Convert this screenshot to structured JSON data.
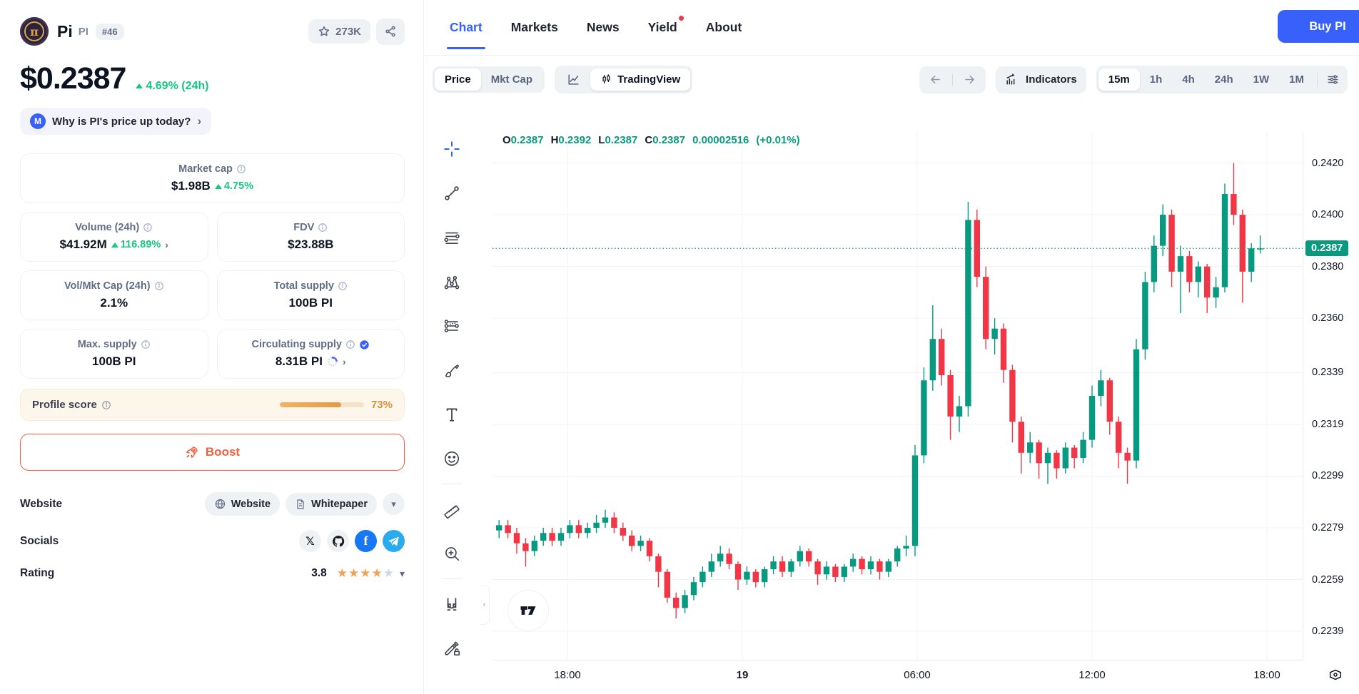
{
  "sidebar": {
    "coin": {
      "name": "Pi",
      "symbol": "PI",
      "rank": "#46",
      "watchers": "273K"
    },
    "price": {
      "value": "$0.2387",
      "change": "4.69% (24h)"
    },
    "why_banner": {
      "text": "Why is PI's price up today?",
      "cmc_initial": "M"
    },
    "stats": {
      "market_cap": {
        "label": "Market cap",
        "value": "$1.98B",
        "change": "4.75%"
      },
      "volume": {
        "label": "Volume (24h)",
        "value": "$41.92M",
        "change": "116.89%"
      },
      "fdv": {
        "label": "FDV",
        "value": "$23.88B"
      },
      "vol_mkt_cap": {
        "label": "Vol/Mkt Cap (24h)",
        "value": "2.1%"
      },
      "total_supply": {
        "label": "Total supply",
        "value": "100B PI"
      },
      "max_supply": {
        "label": "Max. supply",
        "value": "100B PI"
      },
      "circulating_supply": {
        "label": "Circulating supply",
        "value": "8.31B PI"
      }
    },
    "profile_score": {
      "label": "Profile score",
      "value": "73%",
      "percent": 73
    },
    "boost_label": "Boost",
    "website_row": {
      "label": "Website",
      "website_button": "Website",
      "whitepaper_button": "Whitepaper"
    },
    "socials_row": {
      "label": "Socials",
      "icons": [
        "x",
        "github",
        "facebook",
        "telegram"
      ]
    },
    "rating_row": {
      "label": "Rating",
      "value": "3.8",
      "stars_full": 4,
      "stars_empty": 1
    }
  },
  "header": {
    "tabs": [
      {
        "label": "Chart",
        "active": true
      },
      {
        "label": "Markets"
      },
      {
        "label": "News"
      },
      {
        "label": "Yield",
        "dot": true
      },
      {
        "label": "About"
      }
    ],
    "buy_button": "Buy PI"
  },
  "chart_toolbar": {
    "price_toggle": [
      {
        "label": "Price",
        "active": true
      },
      {
        "label": "Mkt Cap"
      }
    ],
    "tradingview_toggle_label": "TradingView",
    "indicators_label": "Indicators",
    "timeframes": [
      {
        "label": "15m",
        "active": true
      },
      {
        "label": "1h"
      },
      {
        "label": "4h"
      },
      {
        "label": "24h"
      },
      {
        "label": "1W"
      },
      {
        "label": "1M"
      }
    ]
  },
  "chart_tools": [
    "crosshair",
    "trend-line",
    "horizontal-lines",
    "xabcd-pattern",
    "forecast",
    "brush",
    "text",
    "emoji",
    "divider",
    "ruler",
    "zoom-in",
    "divider",
    "magnet",
    "draw-lock"
  ],
  "chart_data": {
    "type": "candlestick",
    "interval": "15m",
    "ohlc_legend": {
      "o_label": "O",
      "o": "0.2387",
      "h_label": "H",
      "h": "0.2392",
      "l_label": "L",
      "l": "0.2387",
      "c_label": "C",
      "c": "0.2387",
      "change_abs": "0.00002516",
      "change_pct": "(+0.01%)"
    },
    "current_price": 0.2387,
    "current_price_label": "0.2387",
    "up_color": "#089981",
    "down_color": "#f23645",
    "grid_color": "#f1f3f8",
    "price_min": 0.2228,
    "price_max": 0.2432,
    "y_ticks": [
      {
        "price": 0.242,
        "label": "0.2420"
      },
      {
        "price": 0.24,
        "label": "0.2400"
      },
      {
        "price": 0.238,
        "label": "0.2380"
      },
      {
        "price": 0.236,
        "label": "0.2360"
      },
      {
        "price": 0.2339,
        "label": "0.2339"
      },
      {
        "price": 0.2319,
        "label": "0.2319"
      },
      {
        "price": 0.2299,
        "label": "0.2299"
      },
      {
        "price": 0.2279,
        "label": "0.2279"
      },
      {
        "price": 0.2259,
        "label": "0.2259"
      },
      {
        "price": 0.2239,
        "label": "0.2239"
      }
    ],
    "x_ticks": [
      {
        "label": "18:00",
        "pos": 105
      },
      {
        "label": "19",
        "pos": 350,
        "bold": true
      },
      {
        "label": "06:00",
        "pos": 595
      },
      {
        "label": "12:00",
        "pos": 840
      },
      {
        "label": "18:00",
        "pos": 1085
      }
    ],
    "candles": [
      [
        0.2278,
        0.2282,
        0.2275,
        0.228
      ],
      [
        0.228,
        0.2282,
        0.2275,
        0.2277
      ],
      [
        0.2277,
        0.2279,
        0.2269,
        0.2273
      ],
      [
        0.2273,
        0.2275,
        0.2264,
        0.227
      ],
      [
        0.227,
        0.2276,
        0.2268,
        0.2274
      ],
      [
        0.2274,
        0.2279,
        0.2272,
        0.2277
      ],
      [
        0.2277,
        0.2279,
        0.2272,
        0.2274
      ],
      [
        0.2274,
        0.2279,
        0.2272,
        0.2277
      ],
      [
        0.2277,
        0.2282,
        0.2275,
        0.228
      ],
      [
        0.228,
        0.2282,
        0.2275,
        0.2277
      ],
      [
        0.2277,
        0.2281,
        0.2275,
        0.2279
      ],
      [
        0.2279,
        0.2284,
        0.2277,
        0.2281
      ],
      [
        0.2281,
        0.2286,
        0.2279,
        0.2283
      ],
      [
        0.2283,
        0.2285,
        0.2277,
        0.2279
      ],
      [
        0.2279,
        0.2281,
        0.2274,
        0.2276
      ],
      [
        0.2276,
        0.2278,
        0.227,
        0.2272
      ],
      [
        0.2272,
        0.2276,
        0.227,
        0.2274
      ],
      [
        0.2274,
        0.2275,
        0.2266,
        0.2268
      ],
      [
        0.2268,
        0.2269,
        0.2256,
        0.2262
      ],
      [
        0.2262,
        0.2263,
        0.225,
        0.2252
      ],
      [
        0.2252,
        0.2254,
        0.2244,
        0.2248
      ],
      [
        0.2248,
        0.2255,
        0.2246,
        0.2253
      ],
      [
        0.2253,
        0.226,
        0.2251,
        0.2258
      ],
      [
        0.2258,
        0.2264,
        0.2256,
        0.2262
      ],
      [
        0.2262,
        0.2269,
        0.226,
        0.2266
      ],
      [
        0.2266,
        0.2272,
        0.2264,
        0.2269
      ],
      [
        0.2269,
        0.2271,
        0.2263,
        0.2265
      ],
      [
        0.2265,
        0.2266,
        0.2255,
        0.2259
      ],
      [
        0.2259,
        0.2264,
        0.2257,
        0.2262
      ],
      [
        0.2262,
        0.2263,
        0.2256,
        0.2258
      ],
      [
        0.2258,
        0.2264,
        0.2256,
        0.2263
      ],
      [
        0.2263,
        0.2268,
        0.2261,
        0.2266
      ],
      [
        0.2266,
        0.2268,
        0.226,
        0.2262
      ],
      [
        0.2262,
        0.2267,
        0.226,
        0.2266
      ],
      [
        0.2266,
        0.2272,
        0.2264,
        0.227
      ],
      [
        0.227,
        0.2271,
        0.2264,
        0.2266
      ],
      [
        0.2266,
        0.2267,
        0.2257,
        0.2261
      ],
      [
        0.2261,
        0.2266,
        0.2259,
        0.2264
      ],
      [
        0.2264,
        0.2265,
        0.2258,
        0.226
      ],
      [
        0.226,
        0.2265,
        0.2258,
        0.2264
      ],
      [
        0.2264,
        0.2269,
        0.2262,
        0.2267
      ],
      [
        0.2267,
        0.2268,
        0.2261,
        0.2263
      ],
      [
        0.2263,
        0.2268,
        0.2261,
        0.2266
      ],
      [
        0.2266,
        0.2267,
        0.2259,
        0.2262
      ],
      [
        0.2262,
        0.2267,
        0.226,
        0.2266
      ],
      [
        0.2266,
        0.2272,
        0.2264,
        0.2271
      ],
      [
        0.2271,
        0.2276,
        0.2268,
        0.2272
      ],
      [
        0.2272,
        0.2311,
        0.2268,
        0.2307
      ],
      [
        0.2307,
        0.2341,
        0.2304,
        0.2336
      ],
      [
        0.2336,
        0.2365,
        0.2332,
        0.2352
      ],
      [
        0.2352,
        0.2356,
        0.2334,
        0.2338
      ],
      [
        0.2338,
        0.234,
        0.2313,
        0.2322
      ],
      [
        0.2322,
        0.233,
        0.2316,
        0.2326
      ],
      [
        0.2326,
        0.2405,
        0.2322,
        0.2398
      ],
      [
        0.2398,
        0.2402,
        0.2372,
        0.2376
      ],
      [
        0.2376,
        0.238,
        0.2348,
        0.2352
      ],
      [
        0.2352,
        0.236,
        0.2346,
        0.2356
      ],
      [
        0.2356,
        0.2358,
        0.2335,
        0.234
      ],
      [
        0.234,
        0.2342,
        0.2312,
        0.232
      ],
      [
        0.232,
        0.2322,
        0.23,
        0.2308
      ],
      [
        0.2308,
        0.2316,
        0.2304,
        0.2312
      ],
      [
        0.2312,
        0.2313,
        0.2298,
        0.2304
      ],
      [
        0.2304,
        0.231,
        0.2296,
        0.2308
      ],
      [
        0.2308,
        0.2309,
        0.2298,
        0.2302
      ],
      [
        0.2302,
        0.2312,
        0.23,
        0.231
      ],
      [
        0.231,
        0.2311,
        0.2302,
        0.2306
      ],
      [
        0.2306,
        0.2316,
        0.2304,
        0.2313
      ],
      [
        0.2313,
        0.2334,
        0.231,
        0.233
      ],
      [
        0.233,
        0.234,
        0.2326,
        0.2336
      ],
      [
        0.2336,
        0.2337,
        0.2315,
        0.232
      ],
      [
        0.232,
        0.2322,
        0.2302,
        0.2308
      ],
      [
        0.2308,
        0.231,
        0.2296,
        0.2305
      ],
      [
        0.2305,
        0.2352,
        0.2302,
        0.2348
      ],
      [
        0.2348,
        0.2378,
        0.2344,
        0.2374
      ],
      [
        0.2374,
        0.2392,
        0.237,
        0.2388
      ],
      [
        0.2388,
        0.2404,
        0.2384,
        0.24
      ],
      [
        0.24,
        0.2402,
        0.2372,
        0.2378
      ],
      [
        0.2378,
        0.2388,
        0.2362,
        0.2384
      ],
      [
        0.2384,
        0.2386,
        0.237,
        0.2374
      ],
      [
        0.2374,
        0.2382,
        0.2368,
        0.238
      ],
      [
        0.238,
        0.2381,
        0.2362,
        0.2368
      ],
      [
        0.2368,
        0.2376,
        0.2364,
        0.2372
      ],
      [
        0.2372,
        0.2412,
        0.237,
        0.2408
      ],
      [
        0.2408,
        0.242,
        0.2396,
        0.24
      ],
      [
        0.24,
        0.2402,
        0.2366,
        0.2378
      ],
      [
        0.2378,
        0.2389,
        0.2374,
        0.2387
      ],
      [
        0.2387,
        0.2392,
        0.2385,
        0.2387
      ]
    ]
  }
}
